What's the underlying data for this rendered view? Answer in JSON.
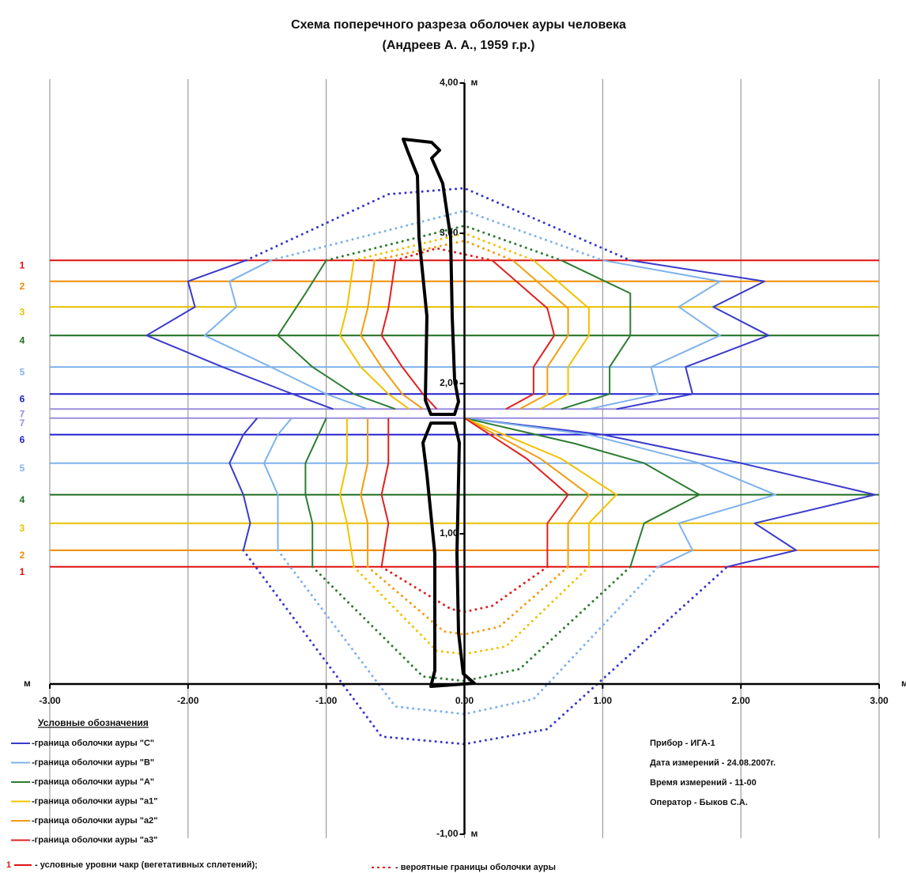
{
  "chart_data": {
    "type": "line",
    "title": "Схема поперечного разреза оболочек ауры человека",
    "subtitle": "(Андреев  А. А., 1959 г.р.)",
    "x_axis_label": "м",
    "y_axis_label": "м",
    "xlim": [
      -3,
      3
    ],
    "ylim": [
      -1,
      4
    ],
    "xticks": [
      {
        "value": -3,
        "label": "-3.00"
      },
      {
        "value": -2,
        "label": "-2.00"
      },
      {
        "value": -1,
        "label": "-1.00"
      },
      {
        "value": 0,
        "label": "0.00"
      },
      {
        "value": 1,
        "label": "1.00"
      },
      {
        "value": 2,
        "label": "2.00"
      },
      {
        "value": 3,
        "label": "3.00"
      }
    ],
    "yticks": [
      {
        "value": -1,
        "label": "-1,00"
      },
      {
        "value": 1,
        "label": "1,00"
      },
      {
        "value": 2,
        "label": "2,00"
      },
      {
        "value": 3,
        "label": "3,00"
      },
      {
        "value": 4,
        "label": "4,00"
      }
    ],
    "grid": true,
    "legend_title": "Условные обозначения",
    "series": [
      {
        "name": "-граница оболочки ауры \"С\"",
        "color": "#3a3acc",
        "x": [
          -1.58,
          -2.0,
          -1.95,
          -2.3,
          -1.75,
          -1.3,
          -0.95,
          null,
          1.2,
          2.17,
          1.8,
          2.2,
          1.6,
          1.65,
          1.1,
          null,
          -1.5,
          -1.6,
          -1.7,
          -1.6,
          -1.55,
          -1.6,
          null,
          0.0,
          1.0,
          2.0,
          2.97,
          2.1,
          2.4,
          1.9
        ],
        "y": [
          2.82,
          2.68,
          2.51,
          2.32,
          2.11,
          1.95,
          1.83,
          null,
          2.82,
          2.68,
          2.51,
          2.32,
          2.11,
          1.93,
          1.83,
          null,
          1.77,
          1.66,
          1.47,
          1.26,
          1.07,
          0.89,
          null,
          1.77,
          1.66,
          1.47,
          1.26,
          1.07,
          0.89,
          0.78
        ],
        "dotted_x": [
          -1.58,
          -0.55,
          0.0,
          1.2,
          null,
          -1.6,
          -0.6,
          0.0,
          0.6,
          1.9
        ],
        "dotted_y": [
          2.82,
          3.26,
          3.3,
          2.82,
          null,
          0.89,
          -0.35,
          -0.4,
          -0.3,
          0.78
        ]
      },
      {
        "name": "-граница оболочки ауры \"В\"",
        "color": "#7fb2ec",
        "x": [
          -1.4,
          -1.7,
          -1.65,
          -1.88,
          -1.4,
          -1.0,
          -0.7,
          null,
          1.0,
          1.85,
          1.55,
          1.85,
          1.35,
          1.4,
          0.9,
          null,
          -1.25,
          -1.35,
          -1.45,
          -1.35,
          -1.35,
          -1.35,
          null,
          0.0,
          0.9,
          1.7,
          2.25,
          1.55,
          1.65,
          1.4
        ],
        "y": [
          2.82,
          2.68,
          2.51,
          2.32,
          2.11,
          1.93,
          1.83,
          null,
          2.82,
          2.68,
          2.51,
          2.32,
          2.11,
          1.93,
          1.83,
          null,
          1.77,
          1.66,
          1.47,
          1.26,
          1.07,
          0.89,
          null,
          1.77,
          1.66,
          1.47,
          1.26,
          1.07,
          0.89,
          0.78
        ],
        "dotted_x": [
          -1.4,
          0.0,
          1.0,
          null,
          -1.35,
          -0.5,
          0.0,
          0.5,
          1.4
        ],
        "dotted_y": [
          2.82,
          3.15,
          2.82,
          null,
          0.89,
          -0.15,
          -0.2,
          -0.1,
          0.78
        ]
      },
      {
        "name": "-граница оболочки ауры \"А\"",
        "color": "#2e7d32",
        "x": [
          -1.0,
          -1.15,
          -1.35,
          -1.1,
          -0.8,
          -0.5,
          null,
          0.7,
          1.2,
          1.2,
          1.05,
          1.05,
          0.7,
          null,
          -1.0,
          -1.15,
          -1.15,
          -1.1,
          -1.1,
          null,
          0.0,
          0.8,
          1.3,
          1.7,
          1.3,
          1.2
        ],
        "y": [
          2.82,
          2.6,
          2.32,
          2.11,
          1.93,
          1.83,
          null,
          2.82,
          2.6,
          2.32,
          2.11,
          1.93,
          1.83,
          null,
          1.77,
          1.47,
          1.26,
          1.07,
          0.78,
          null,
          1.77,
          1.6,
          1.47,
          1.26,
          1.07,
          0.78
        ],
        "dotted_x": [
          -1.0,
          0.0,
          0.7,
          null,
          -1.1,
          -0.3,
          0.0,
          0.4,
          1.2
        ],
        "dotted_y": [
          2.82,
          3.05,
          2.82,
          null,
          0.78,
          0.05,
          0.02,
          0.1,
          0.78
        ]
      },
      {
        "name": "-граница оболочки ауры \"а1\"",
        "color": "#f2c200",
        "x": [
          -0.8,
          -0.85,
          -0.9,
          -0.75,
          -0.55,
          -0.4,
          null,
          0.5,
          0.9,
          0.9,
          0.75,
          0.75,
          0.55,
          null,
          -0.85,
          -0.85,
          -0.9,
          -0.85,
          -0.8,
          null,
          0.0,
          0.7,
          1.1,
          0.9,
          0.9
        ],
        "y": [
          2.82,
          2.5,
          2.32,
          2.11,
          1.93,
          1.83,
          null,
          2.82,
          2.5,
          2.32,
          2.11,
          1.93,
          1.83,
          null,
          1.77,
          1.47,
          1.26,
          1.07,
          0.78,
          null,
          1.77,
          1.5,
          1.26,
          1.07,
          0.78
        ],
        "dotted_x": [
          -0.8,
          0.0,
          0.5,
          null,
          -0.8,
          -0.2,
          0.0,
          0.3,
          0.9
        ],
        "dotted_y": [
          2.82,
          3.0,
          2.82,
          null,
          0.78,
          0.22,
          0.2,
          0.25,
          0.78
        ]
      },
      {
        "name": "-граница оболочки ауры \"а2\"",
        "color": "#f39c12",
        "x": [
          -0.65,
          -0.7,
          -0.75,
          -0.6,
          -0.45,
          -0.3,
          null,
          0.35,
          0.75,
          0.75,
          0.6,
          0.6,
          0.4,
          null,
          -0.7,
          -0.7,
          -0.75,
          -0.7,
          -0.7,
          null,
          0.0,
          0.55,
          0.9,
          0.75,
          0.75
        ],
        "y": [
          2.82,
          2.5,
          2.32,
          2.11,
          1.93,
          1.83,
          null,
          2.82,
          2.5,
          2.32,
          2.11,
          1.93,
          1.83,
          null,
          1.77,
          1.47,
          1.26,
          1.07,
          0.78,
          null,
          1.77,
          1.5,
          1.26,
          1.07,
          0.78
        ],
        "dotted_x": [
          -0.65,
          0.0,
          0.35,
          null,
          -0.7,
          -0.15,
          0.0,
          0.25,
          0.75
        ],
        "dotted_y": [
          2.82,
          2.95,
          2.82,
          null,
          0.78,
          0.35,
          0.33,
          0.38,
          0.78
        ]
      },
      {
        "name": "-граница оболочки ауры \"а3\"",
        "color": "#e02020",
        "x": [
          -0.5,
          -0.55,
          -0.6,
          -0.45,
          -0.3,
          -0.2,
          null,
          0.2,
          0.6,
          0.65,
          0.5,
          0.5,
          0.3,
          null,
          -0.55,
          -0.55,
          -0.6,
          -0.55,
          -0.6,
          null,
          0.0,
          0.45,
          0.75,
          0.6,
          0.6
        ],
        "y": [
          2.82,
          2.5,
          2.32,
          2.11,
          1.93,
          1.83,
          null,
          2.82,
          2.5,
          2.32,
          2.11,
          1.93,
          1.83,
          null,
          1.77,
          1.47,
          1.26,
          1.07,
          0.78,
          null,
          1.77,
          1.5,
          1.26,
          1.07,
          0.78
        ],
        "dotted_x": [
          -0.5,
          -0.2,
          0.2,
          null,
          -0.6,
          -0.1,
          0.0,
          0.2,
          0.6
        ],
        "dotted_y": [
          2.82,
          2.9,
          2.82,
          null,
          0.78,
          0.5,
          0.48,
          0.52,
          0.78
        ]
      }
    ],
    "chakra_levels": [
      {
        "label": "1",
        "y": 2.82,
        "color": "#e01010"
      },
      {
        "label": "2",
        "y": 2.68,
        "color": "#f08c00"
      },
      {
        "label": "3",
        "y": 2.51,
        "color": "#e8c000"
      },
      {
        "label": "4",
        "y": 2.32,
        "color": "#1e6e1e"
      },
      {
        "label": "5",
        "y": 2.11,
        "color": "#7fb2ec"
      },
      {
        "label": "6",
        "y": 1.93,
        "color": "#2020d0"
      },
      {
        "label": "7",
        "y": 1.83,
        "color": "#9a8ee0"
      },
      {
        "label": "7",
        "y": 1.77,
        "color": "#9a8ee0"
      },
      {
        "label": "6",
        "y": 1.66,
        "color": "#2020d0"
      },
      {
        "label": "5",
        "y": 1.47,
        "color": "#7fb2ec"
      },
      {
        "label": "4",
        "y": 1.26,
        "color": "#1e6e1e"
      },
      {
        "label": "3",
        "y": 1.07,
        "color": "#e8c000"
      },
      {
        "label": "2",
        "y": 0.89,
        "color": "#f08c00"
      },
      {
        "label": "1",
        "y": 0.78,
        "color": "#e01010"
      }
    ],
    "chakra_legend": {
      "label": "1",
      "text": "- условные уровни чакр (вегетативных сплетений);"
    },
    "dotted_legend": "- вероятные границы оболочки ауры",
    "info": [
      "Прибор - ИГА-1",
      "Дата измерений - 24.08.2007г.",
      "Время измерений - 11-00",
      "Оператор - Быков С.А."
    ]
  }
}
